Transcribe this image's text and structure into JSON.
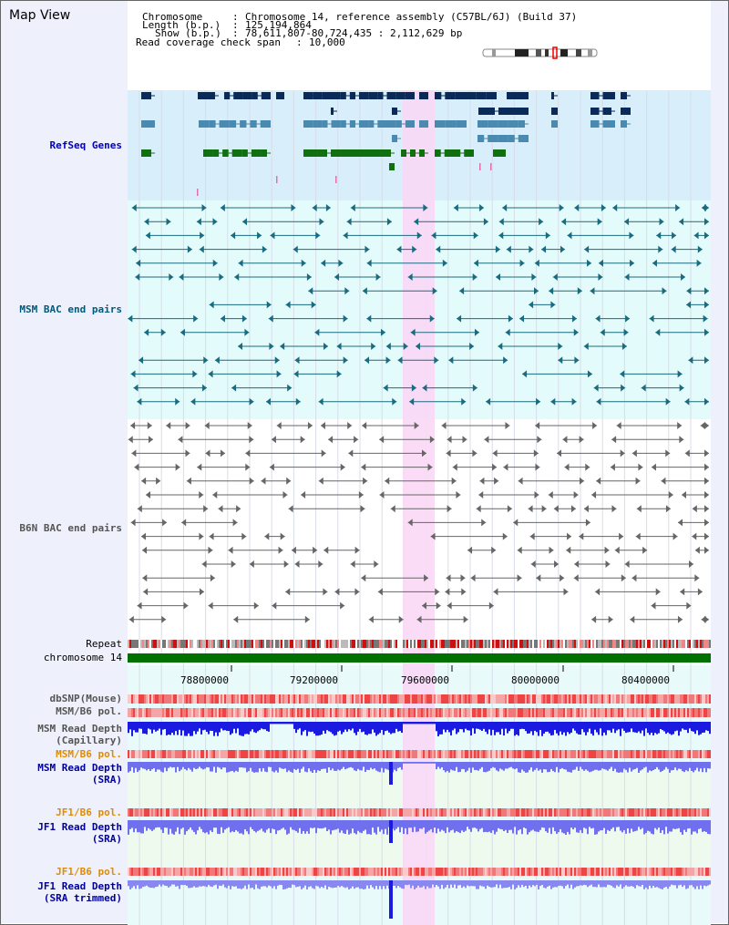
{
  "title": "Map View",
  "header": {
    "chromosome_label": "Chromosome",
    "chromosome_value": "Chromosome 14, reference assembly (C57BL/6J) (Build 37)",
    "length_label": "Length (b.p.)",
    "length_value": "125,194,864",
    "show_label": "Show (b.p.)",
    "show_value": "78,611,807-80,724,435 : 2,112,629 bp",
    "span_label": "Read coverage check span",
    "span_value": "10,000"
  },
  "tracks": {
    "refseq": "RefSeq Genes",
    "msm_bac": "MSM BAC end pairs",
    "b6n_bac": "B6N BAC end pairs",
    "repeat": "Repeat",
    "chromosome": "chromosome 14",
    "dbsnp": "dbSNP(Mouse)",
    "msm_b6_pol": "MSM/B6 pol.",
    "msm_depth_cap_1": "MSM Read Depth",
    "msm_depth_cap_2": "(Capillary)",
    "msm_b6_pol_2": "MSM/B6 pol.",
    "msm_depth_sra_1": "MSM Read Depth",
    "msm_depth_sra_2": "(SRA)",
    "jf1_b6_pol": "JF1/B6 pol.",
    "jf1_depth_sra_1": "JF1 Read Depth",
    "jf1_depth_sra_2": "(SRA)",
    "jf1_b6_pol_2": "JF1/B6 pol.",
    "jf1_depth_trim_1": "JF1 Read Depth",
    "jf1_depth_trim_2": "(SRA trimmed)"
  },
  "axis": {
    "ticks": [
      "78800000",
      "79200000",
      "79600000",
      "80000000",
      "80400000"
    ]
  },
  "colors": {
    "refseq_bg": "#d8eefa",
    "msm_bg": "#e4fbfb",
    "highlight": "#f9d8f6",
    "chromosome_bar": "#007000",
    "msm_bac_line": "#1a6b80",
    "b6n_bac_line": "#666666",
    "gene_dark": "#0a2a5a",
    "gene_mid": "#4a8ab0",
    "gene_green": "#107010",
    "capillary_depth": "#1a1ae0",
    "sra_depth": "#7070ee"
  }
}
